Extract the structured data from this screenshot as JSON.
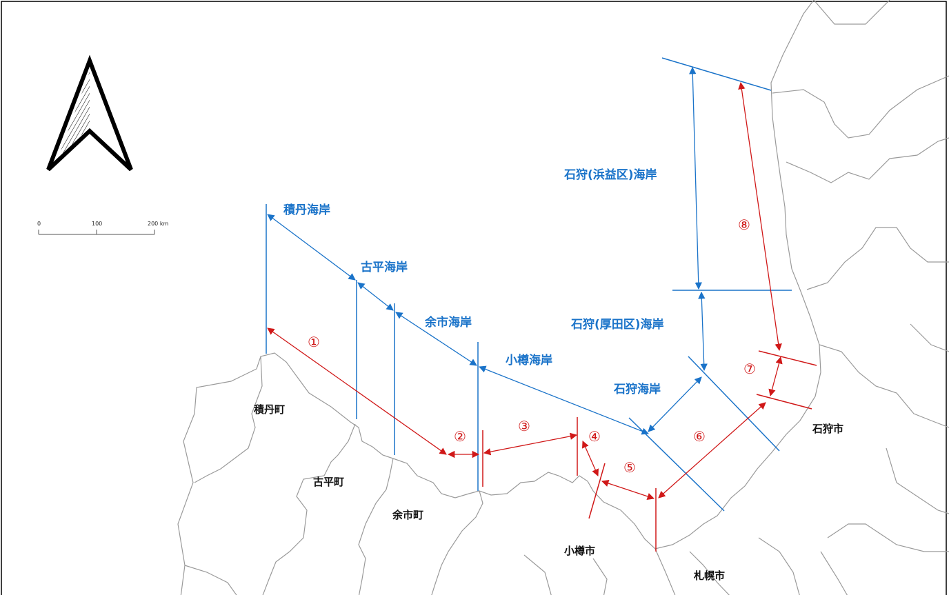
{
  "coast_names": {
    "shakotan": "積丹海岸",
    "furubira": "古平海岸",
    "yoichi": "余市海岸",
    "otaru": "小樽海岸",
    "ishikari": "石狩海岸",
    "ishikari_atsuta": "石狩(厚田区)海岸",
    "ishikari_hamamasu": "石狩(浜益区)海岸"
  },
  "municipalities": {
    "shakotan_town": "積丹町",
    "furubira_town": "古平町",
    "yoichi_town": "余市町",
    "otaru_city": "小樽市",
    "ishikari_city": "石狩市",
    "sapporo_city": "札幌市"
  },
  "zones": [
    "①",
    "②",
    "③",
    "④",
    "⑤",
    "⑥",
    "⑦",
    "⑧"
  ],
  "scale_bar": {
    "tick_0": "0",
    "tick_100": "100",
    "tick_200": "200 km"
  },
  "colors": {
    "coast": "#1a73c9",
    "zone": "#d01818",
    "boundary": "#9a9a9a",
    "frame": "#000000"
  },
  "icons": {
    "north": "north-arrow-icon"
  }
}
